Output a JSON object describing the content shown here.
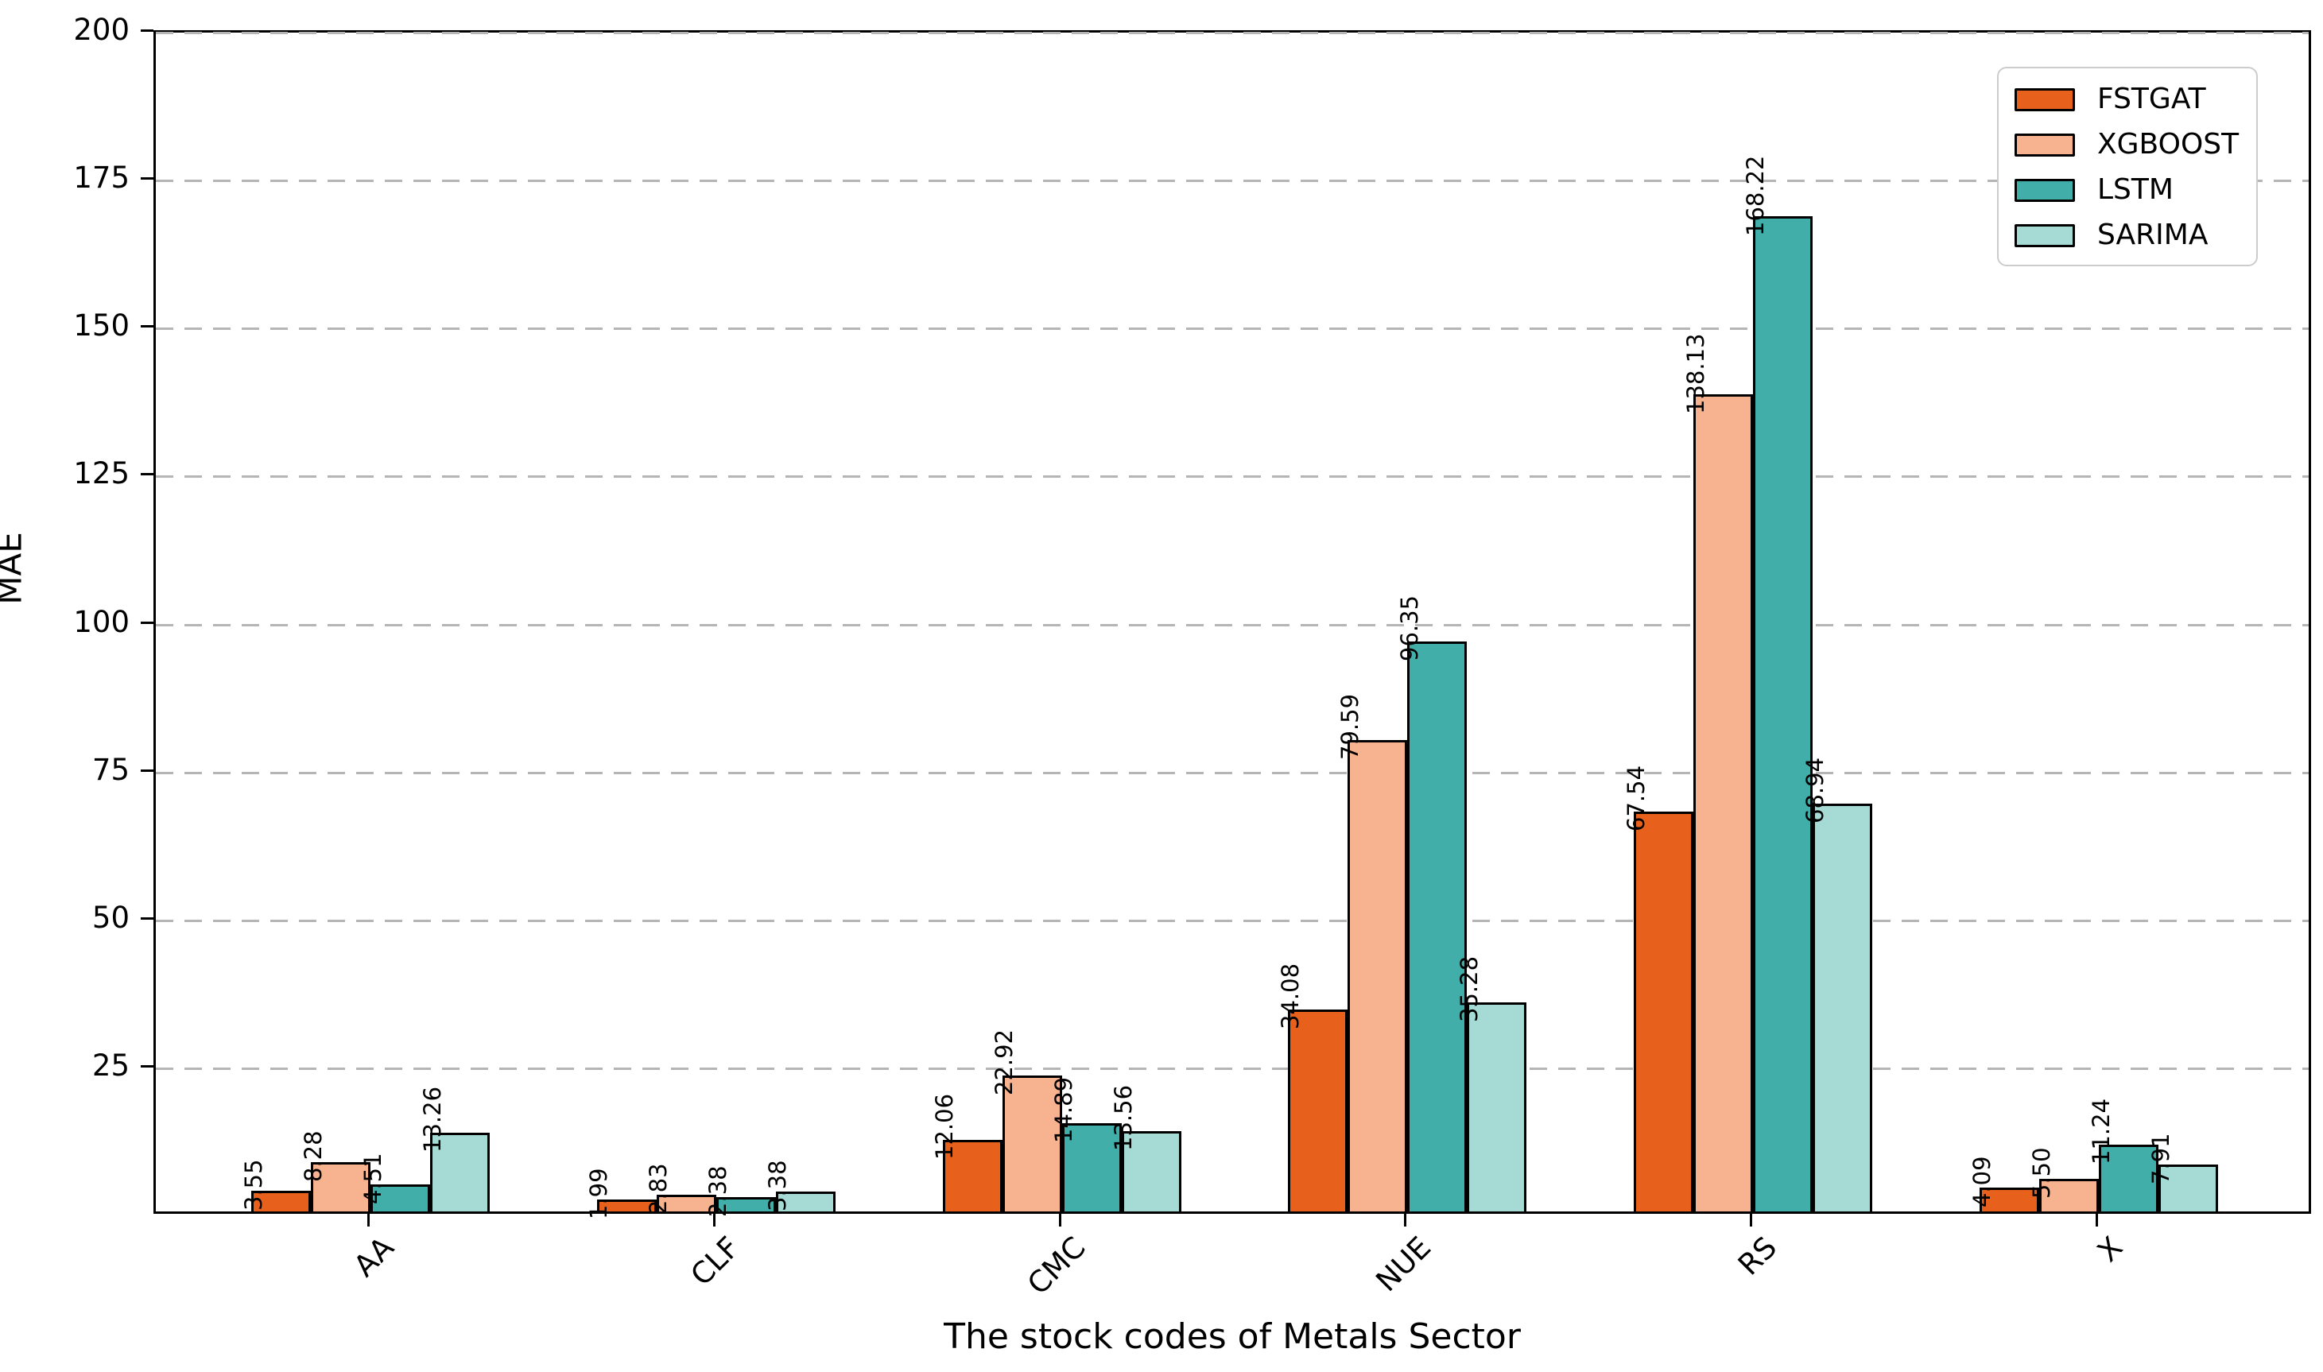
{
  "chart_data": {
    "type": "bar",
    "title": "",
    "xlabel": "The stock codes of Metals Sector",
    "ylabel": "MAE",
    "ylim": [
      0,
      200
    ],
    "yticks": [
      25,
      50,
      75,
      100,
      125,
      150,
      175,
      200
    ],
    "grid": "horizontal dashed lines at each y tick",
    "legend_position": "upper right",
    "bar_edge_color": "#000000",
    "value_label_rotation": 90,
    "xtick_rotation": 45,
    "categories": [
      "AA",
      "CLF",
      "CMC",
      "NUE",
      "RS",
      "X"
    ],
    "series": [
      {
        "name": "FSTGAT",
        "color": "#E8611C",
        "values": [
          3.55,
          1.99,
          12.06,
          34.08,
          67.54,
          4.09
        ]
      },
      {
        "name": "XGBOOST",
        "color": "#F7B28F",
        "values": [
          8.28,
          2.83,
          22.92,
          79.59,
          138.13,
          5.5
        ]
      },
      {
        "name": "LSTM",
        "color": "#41AEA9",
        "values": [
          4.51,
          2.38,
          14.89,
          96.35,
          168.22,
          11.24
        ]
      },
      {
        "name": "SARIMA",
        "color": "#A5DAD5",
        "values": [
          13.26,
          3.38,
          13.56,
          35.28,
          68.94,
          7.91
        ]
      }
    ],
    "value_labels": {
      "AA": [
        "3.55",
        "8.28",
        "4.51",
        "13.26"
      ],
      "CLF": [
        "1.99",
        "2.83",
        "2.38",
        "3.38"
      ],
      "CMC": [
        "12.06",
        "22.92",
        "14.89",
        "13.56"
      ],
      "NUE": [
        "34.08",
        "79.59",
        "96.35",
        "35.28"
      ],
      "RS": [
        "67.54",
        "138.13",
        "168.22",
        "68.94"
      ],
      "X": [
        "4.09",
        "5.50",
        "11.24",
        "7.91"
      ]
    }
  }
}
